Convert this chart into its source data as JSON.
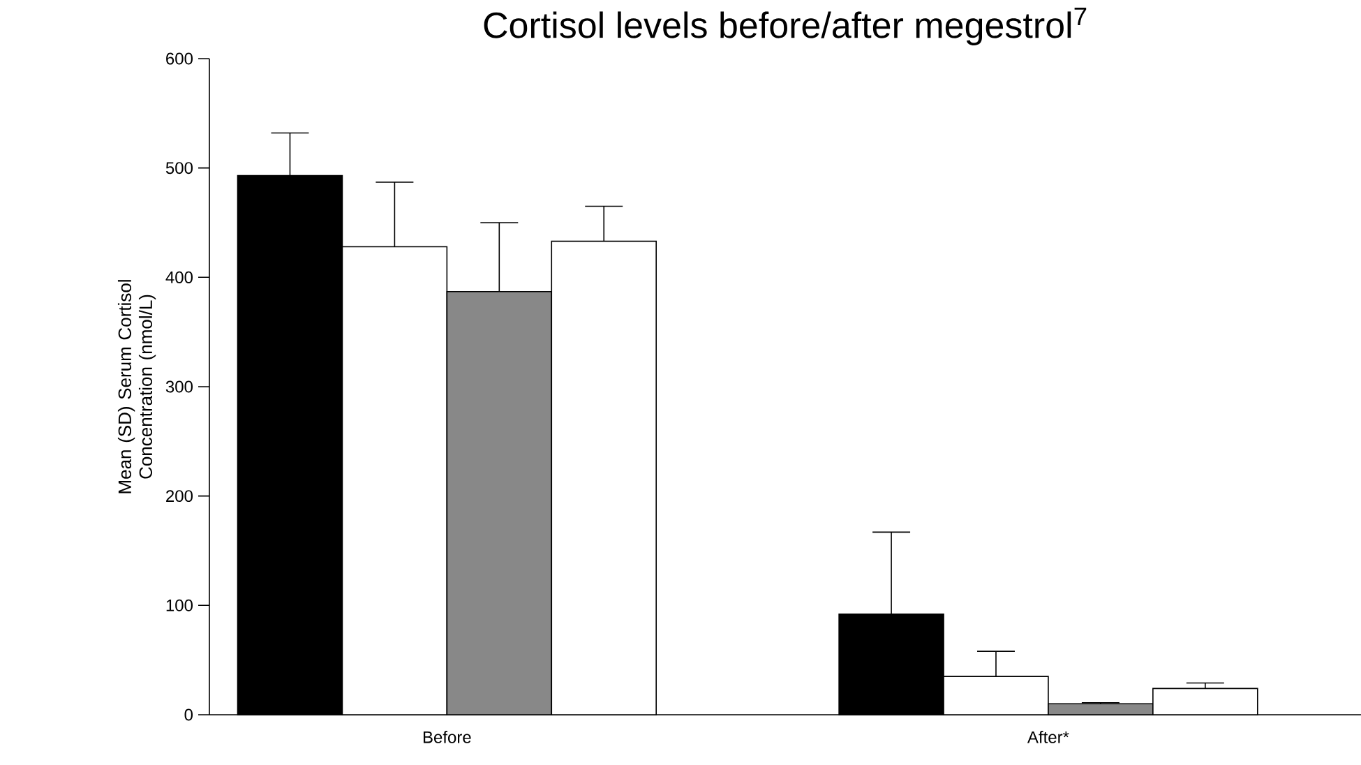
{
  "chart_data": {
    "type": "bar",
    "title": "Cortisol levels before/after megestrol$^{7}$",
    "ylabel": "Mean (SD) Serum Cortisol Concentration (nmol/L)",
    "categories": [
      "Before",
      "After*"
    ],
    "series": [
      {
        "color": "#000000",
        "values": [
          493,
          92
        ],
        "errors": [
          [
            493,
            532
          ],
          [
            92,
            167
          ]
        ]
      },
      {
        "color": "#ffffff",
        "values": [
          428,
          35
        ],
        "errors": [
          [
            428,
            487
          ],
          [
            35,
            58
          ]
        ]
      },
      {
        "color": "#888888",
        "values": [
          387,
          10
        ],
        "errors": [
          [
            387,
            450
          ],
          [
            10,
            11
          ]
        ]
      },
      {
        "color": "#ffffff",
        "values": [
          433,
          24
        ],
        "errors": [
          [
            433,
            465
          ],
          [
            24,
            29
          ]
        ]
      }
    ],
    "ylim": [
      0,
      600
    ],
    "yticks": [
      0,
      100,
      200,
      300,
      400,
      500,
      600
    ],
    "grid": false
  }
}
